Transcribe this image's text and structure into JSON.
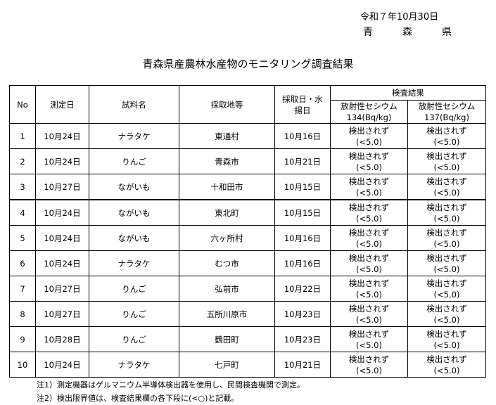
{
  "header": {
    "date": "令和７年10月30日",
    "issuer": [
      "青",
      "森",
      "県"
    ],
    "title": "青森県産農林水産物のモニタリング調査結果"
  },
  "table": {
    "columns": {
      "no": "No",
      "measure_date": "測定日",
      "sample": "試料名",
      "location": "採取地等",
      "collect_date": "採取日・水揚日",
      "result_group": "検査結果",
      "cs134": "放射性セシウム",
      "cs134_unit": "134(Bq/kg)",
      "cs137": "放射性セシウム",
      "cs137_unit": "137(Bq/kg)"
    },
    "rows": [
      {
        "no": "1",
        "measure_date": "10月24日",
        "sample": "ナラタケ",
        "location": "東通村",
        "collect_date": "10月16日",
        "cs134": "検出されず",
        "cs134_limit": "(<5.0)",
        "cs137": "検出されず",
        "cs137_limit": "(<5.0)"
      },
      {
        "no": "2",
        "measure_date": "10月24日",
        "sample": "りんご",
        "location": "青森市",
        "collect_date": "10月21日",
        "cs134": "検出されず",
        "cs134_limit": "(<5.0)",
        "cs137": "検出されず",
        "cs137_limit": "(<5.0)"
      },
      {
        "no": "3",
        "measure_date": "10月27日",
        "sample": "ながいも",
        "location": "十和田市",
        "collect_date": "10月15日",
        "cs134": "検出されず",
        "cs134_limit": "(<5.0)",
        "cs137": "検出されず",
        "cs137_limit": "(<5.0)"
      },
      {
        "no": "4",
        "measure_date": "10月24日",
        "sample": "ながいも",
        "location": "東北町",
        "collect_date": "10月15日",
        "cs134": "検出されず",
        "cs134_limit": "(<5.0)",
        "cs137": "検出されず",
        "cs137_limit": "(<5.0)"
      },
      {
        "no": "5",
        "measure_date": "10月24日",
        "sample": "ながいも",
        "location": "六ヶ所村",
        "collect_date": "10月16日",
        "cs134": "検出されず",
        "cs134_limit": "(<5.0)",
        "cs137": "検出されず",
        "cs137_limit": "(<5.0)"
      },
      {
        "no": "6",
        "measure_date": "10月24日",
        "sample": "ナラタケ",
        "location": "むつ市",
        "collect_date": "10月16日",
        "cs134": "検出されず",
        "cs134_limit": "(<5.0)",
        "cs137": "検出されず",
        "cs137_limit": "(<5.0)"
      },
      {
        "no": "7",
        "measure_date": "10月27日",
        "sample": "りんご",
        "location": "弘前市",
        "collect_date": "10月22日",
        "cs134": "検出されず",
        "cs134_limit": "(<5.0)",
        "cs137": "検出されず",
        "cs137_limit": "(<5.0)"
      },
      {
        "no": "8",
        "measure_date": "10月27日",
        "sample": "りんご",
        "location": "五所川原市",
        "collect_date": "10月23日",
        "cs134": "検出されず",
        "cs134_limit": "(<5.0)",
        "cs137": "検出されず",
        "cs137_limit": "(<5.0)"
      },
      {
        "no": "9",
        "measure_date": "10月28日",
        "sample": "りんご",
        "location": "鶴田町",
        "collect_date": "10月23日",
        "cs134": "検出されず",
        "cs134_limit": "(<5.0)",
        "cs137": "検出されず",
        "cs137_limit": "(<5.0)"
      },
      {
        "no": "10",
        "measure_date": "10月24日",
        "sample": "ナラタケ",
        "location": "七戸町",
        "collect_date": "10月21日",
        "cs134": "検出されず",
        "cs134_limit": "(<5.0)",
        "cs137": "検出されず",
        "cs137_limit": "(<5.0)"
      }
    ]
  },
  "notes": [
    "注1）測定機器はゲルマニウム半導体検出器を使用し、民間検査機関で測定。",
    "注2）検出限界値は、検査結果欄の各下段に(<○)と記載。"
  ]
}
